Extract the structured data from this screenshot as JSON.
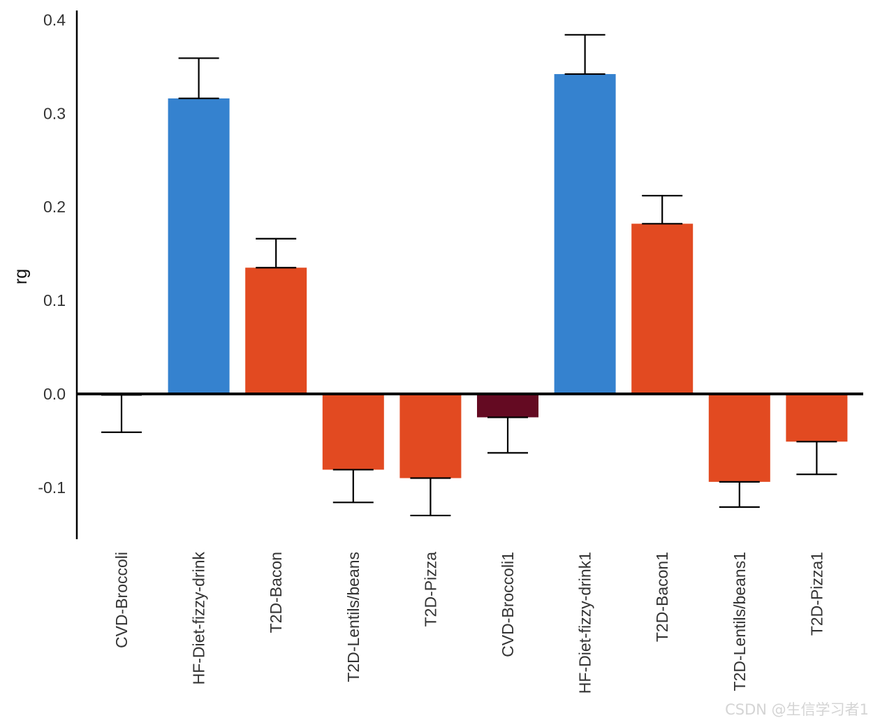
{
  "chart_data": {
    "type": "bar",
    "title": "",
    "xlabel": "",
    "ylabel": "rg",
    "ylim": [
      -0.155,
      0.41
    ],
    "yticks": [
      0.4,
      0.3,
      0.2,
      0.1,
      0.0,
      -0.1
    ],
    "ytick_labels": [
      "0.4",
      "0.3",
      "0.2",
      "0.1",
      "0.0",
      "-0.1"
    ],
    "categories": [
      "CVD-Broccoli",
      "HF-Diet-fizzy-drink",
      "T2D-Bacon",
      "T2D-Lentils/beans",
      "T2D-Pizza",
      "CVD-Broccoli1",
      "HF-Diet-fizzy-drink1",
      "T2D-Bacon1",
      "T2D-Lentils/beans1",
      "T2D-Pizza1"
    ],
    "values": [
      -0.001,
      0.316,
      0.135,
      -0.081,
      -0.09,
      -0.025,
      0.342,
      0.182,
      -0.094,
      -0.051
    ],
    "errors": [
      0.04,
      0.043,
      0.031,
      0.035,
      0.04,
      0.038,
      0.042,
      0.03,
      0.027,
      0.035
    ],
    "colors": [
      "#3a80cc",
      "#3582cf",
      "#e24a21",
      "#e24a21",
      "#e24a21",
      "#640a22",
      "#3582cf",
      "#e24a21",
      "#e24a21",
      "#e24a21"
    ],
    "zero_line": true,
    "grid": false,
    "legend": "none"
  },
  "watermark": "CSDN @生信学习者1"
}
